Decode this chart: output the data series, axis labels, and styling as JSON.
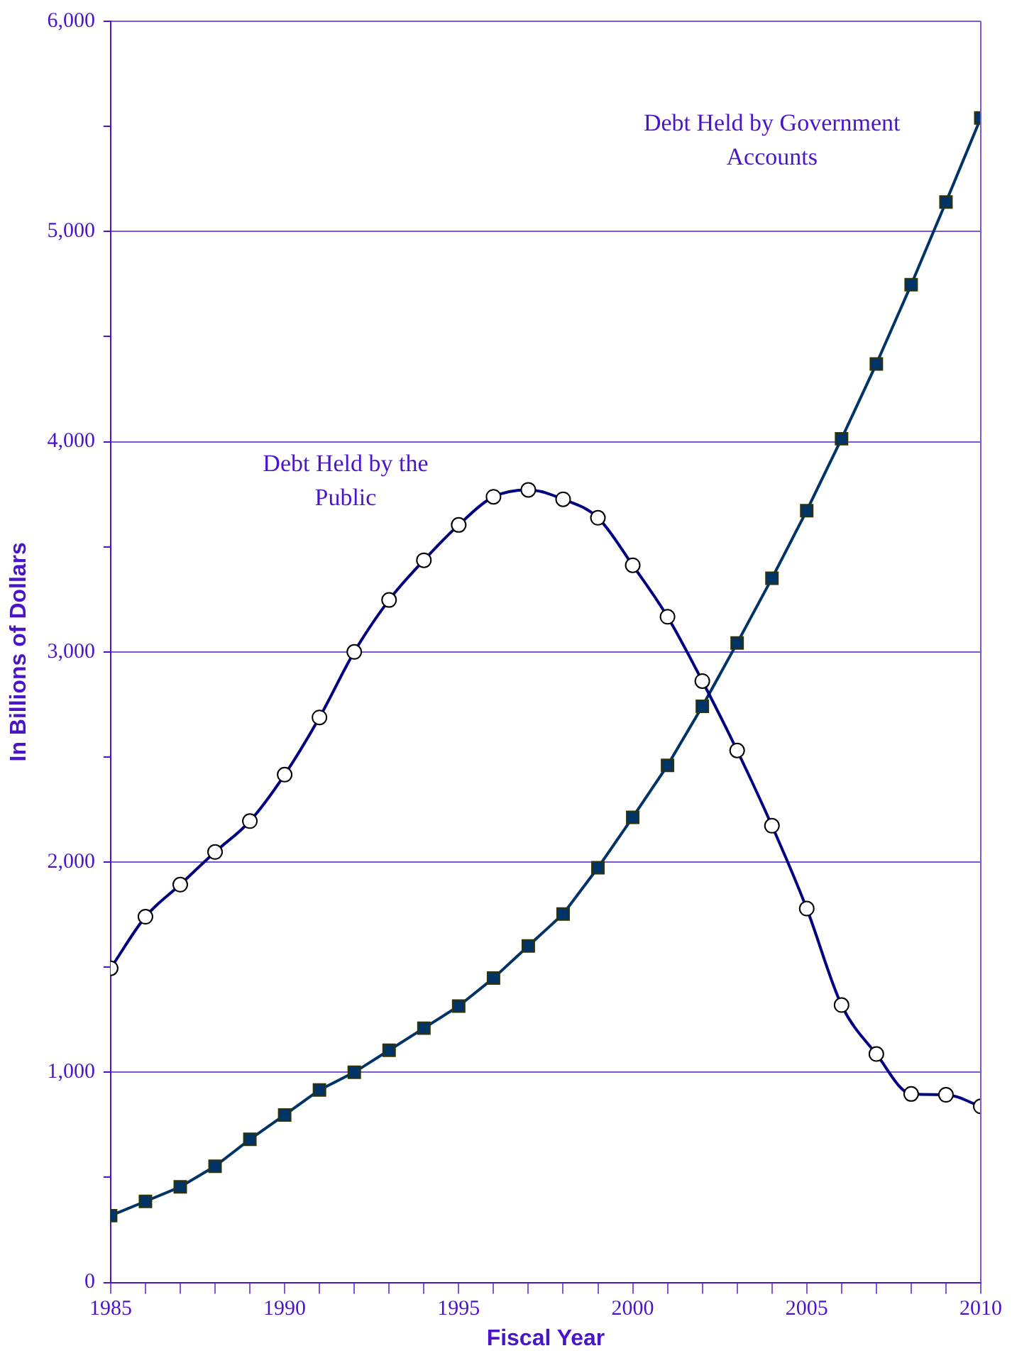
{
  "chart_data": {
    "type": "line",
    "xlabel": "Fiscal Year",
    "ylabel": "In Billions of Dollars",
    "x": [
      1985,
      1986,
      1987,
      1988,
      1989,
      1990,
      1991,
      1992,
      1993,
      1994,
      1995,
      1996,
      1997,
      1998,
      1999,
      2000,
      2001,
      2002,
      2003,
      2004,
      2005,
      2006,
      2007,
      2008,
      2009,
      2010
    ],
    "series": [
      {
        "name": "Debt Held by the Public",
        "color": "#000080",
        "marker": "circle",
        "values": [
          1495,
          1740,
          1893,
          2048,
          2195,
          2416,
          2688,
          3000,
          3247,
          3436,
          3604,
          3738,
          3771,
          3726,
          3638,
          3412,
          3167,
          2861,
          2531,
          2173,
          1779,
          1320,
          1087,
          897,
          893,
          838
        ]
      },
      {
        "name": "Debt Held by Government Accounts",
        "color": "#003366",
        "marker": "square",
        "values": [
          318,
          386,
          455,
          553,
          681,
          797,
          916,
          1000,
          1105,
          1210,
          1315,
          1448,
          1601,
          1753,
          1973,
          2213,
          2460,
          2741,
          3042,
          3350,
          3672,
          4014,
          4370,
          4747,
          5140,
          5540
        ]
      }
    ],
    "xlim": [
      1985,
      2010
    ],
    "xticks": [
      1985,
      {
        "value": 1986,
        "label": null
      },
      {
        "value": 1987,
        "label": null
      },
      {
        "value": 1988,
        "label": null
      },
      {
        "value": 1989,
        "label": null
      },
      1990,
      {
        "value": 1991,
        "label": null
      },
      {
        "value": 1992,
        "label": null
      },
      {
        "value": 1993,
        "label": null
      },
      {
        "value": 1994,
        "label": null
      },
      1995,
      {
        "value": 1996,
        "label": null
      },
      {
        "value": 1997,
        "label": null
      },
      {
        "value": 1998,
        "label": null
      },
      {
        "value": 1999,
        "label": null
      },
      2000,
      {
        "value": 2001,
        "label": null
      },
      {
        "value": 2002,
        "label": null
      },
      {
        "value": 2003,
        "label": null
      },
      {
        "value": 2004,
        "label": null
      },
      2005,
      {
        "value": 2006,
        "label": null
      },
      {
        "value": 2007,
        "label": null
      },
      {
        "value": 2008,
        "label": null
      },
      {
        "value": 2009,
        "label": null
      },
      2010
    ],
    "ylim": [
      0,
      6000
    ],
    "yticks": [
      {
        "value": 0,
        "label": "0"
      },
      {
        "value": 500,
        "label": null
      },
      {
        "value": 1000,
        "label": "1,000"
      },
      {
        "value": 1500,
        "label": null
      },
      {
        "value": 2000,
        "label": "2,000"
      },
      {
        "value": 2500,
        "label": null
      },
      {
        "value": 3000,
        "label": "3,000"
      },
      {
        "value": 3500,
        "label": null
      },
      {
        "value": 4000,
        "label": "4,000"
      },
      {
        "value": 4500,
        "label": null
      },
      {
        "value": 5000,
        "label": "5,000"
      },
      {
        "value": 5500,
        "label": null
      },
      {
        "value": 6000,
        "label": "6,000"
      }
    ],
    "grid": "y",
    "legend": false,
    "line_style": "solid"
  }
}
